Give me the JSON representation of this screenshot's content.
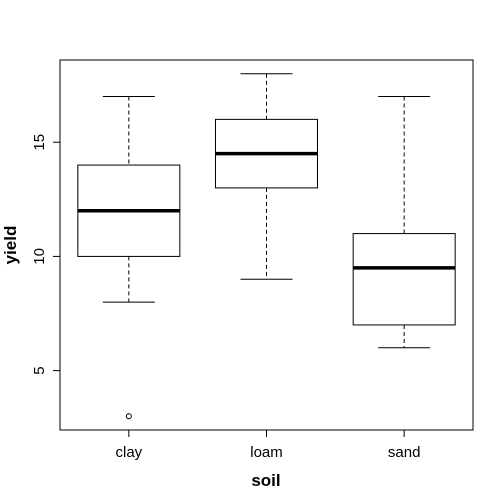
{
  "chart_data": {
    "type": "box",
    "title": "",
    "xlabel": "soil",
    "ylabel": "yield",
    "ylim": [
      2.4,
      18.6
    ],
    "y_ticks": [
      5,
      10,
      15
    ],
    "y_tick_labels": [
      "5",
      "10",
      "15"
    ],
    "grid": false,
    "categories": [
      "clay",
      "loam",
      "sand"
    ],
    "boxes": [
      {
        "category": "clay",
        "whisker_low": 8,
        "q1": 10,
        "median": 12,
        "q3": 14,
        "whisker_high": 17,
        "outliers": [
          3
        ]
      },
      {
        "category": "loam",
        "whisker_low": 9,
        "q1": 13,
        "median": 14.5,
        "q3": 16,
        "whisker_high": 18,
        "outliers": []
      },
      {
        "category": "sand",
        "whisker_low": 6,
        "q1": 7,
        "median": 9.5,
        "q3": 11,
        "whisker_high": 17,
        "outliers": []
      }
    ]
  }
}
